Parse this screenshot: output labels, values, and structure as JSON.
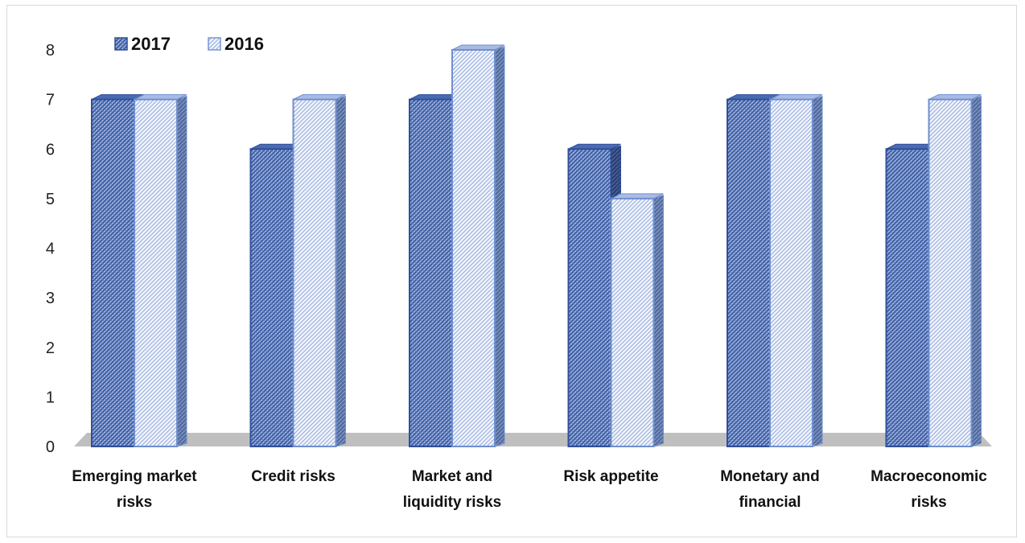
{
  "chart_data": {
    "type": "bar",
    "categories": [
      [
        "Emerging market",
        "risks"
      ],
      [
        "Credit risks"
      ],
      [
        "Market and",
        "liquidity risks"
      ],
      [
        "Risk appetite"
      ],
      [
        "Monetary and",
        "financial"
      ],
      [
        "Macroeconomic",
        "risks"
      ]
    ],
    "series": [
      {
        "name": "2017",
        "values": [
          7,
          6,
          7,
          6,
          7,
          6
        ]
      },
      {
        "name": "2016",
        "values": [
          7,
          7,
          8,
          5,
          7,
          7
        ]
      }
    ],
    "y_ticks": [
      "0",
      "1",
      "2",
      "3",
      "4",
      "5",
      "6",
      "7",
      "8"
    ],
    "ylim": [
      0,
      8
    ],
    "grid": false,
    "legend_position": "top-left",
    "colors": {
      "series_2017_fill": "#7f9bd0",
      "series_2017_line": "#2f4f9a",
      "series_2016_fill": "#dde6f5",
      "series_2016_line": "#6f8fcf",
      "floor": "#bfbfbf"
    }
  }
}
